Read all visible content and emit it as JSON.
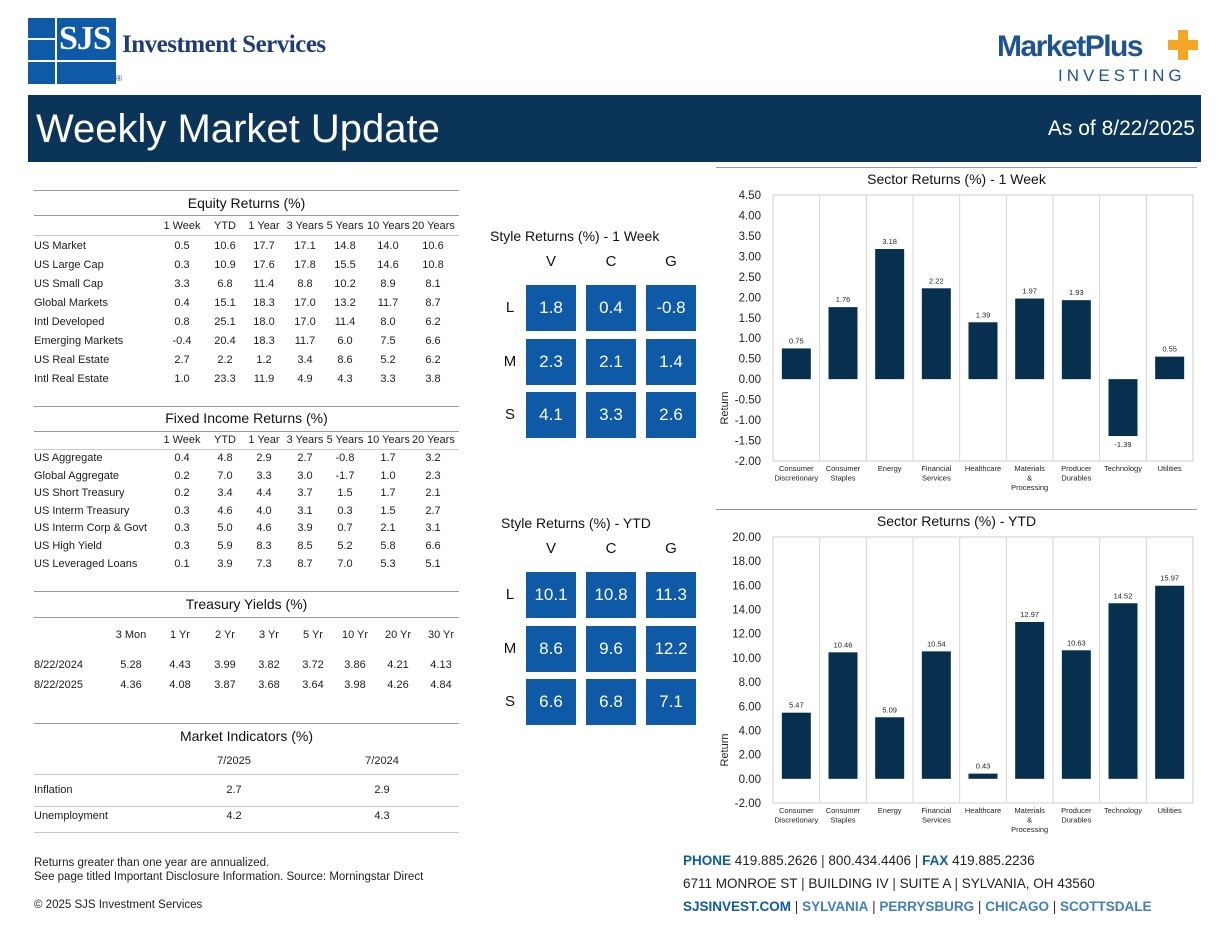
{
  "header": {
    "logo_mark_text": "SJS",
    "company_name": "Investment Services",
    "reg_mark": "®",
    "partner_logo_main": "MarketPlus",
    "partner_logo_sub": "INVESTING",
    "title": "Weekly Market Update",
    "as_of": "As of 8/22/2025"
  },
  "colors": {
    "navy": "#0b3558",
    "bar_navy": "#07304f",
    "style_blue": "#0e5aa7",
    "accent_orange": "#f5a623"
  },
  "equity": {
    "title": "Equity Returns (%)",
    "columns": [
      "1 Week",
      "YTD",
      "1 Year",
      "3 Years",
      "5 Years",
      "10 Years",
      "20 Years"
    ],
    "rows": [
      {
        "label": "US Market",
        "values": [
          "0.5",
          "10.6",
          "17.7",
          "17.1",
          "14.8",
          "14.0",
          "10.6"
        ]
      },
      {
        "label": "US Large Cap",
        "values": [
          "0.3",
          "10.9",
          "17.6",
          "17.8",
          "15.5",
          "14.6",
          "10.8"
        ]
      },
      {
        "label": "US Small Cap",
        "values": [
          "3.3",
          "6.8",
          "11.4",
          "8.8",
          "10.2",
          "8.9",
          "8.1"
        ]
      },
      {
        "label": "Global Markets",
        "values": [
          "0.4",
          "15.1",
          "18.3",
          "17.0",
          "13.2",
          "11.7",
          "8.7"
        ]
      },
      {
        "label": "Intl Developed",
        "values": [
          "0.8",
          "25.1",
          "18.0",
          "17.0",
          "11.4",
          "8.0",
          "6.2"
        ]
      },
      {
        "label": "Emerging Markets",
        "values": [
          "-0.4",
          "20.4",
          "18.3",
          "11.7",
          "6.0",
          "7.5",
          "6.6"
        ]
      },
      {
        "label": "US Real Estate",
        "values": [
          "2.7",
          "2.2",
          "1.2",
          "3.4",
          "8.6",
          "5.2",
          "6.2"
        ]
      },
      {
        "label": "Intl Real Estate",
        "values": [
          "1.0",
          "23.3",
          "11.9",
          "4.9",
          "4.3",
          "3.3",
          "3.8"
        ]
      }
    ]
  },
  "fixed_income": {
    "title": "Fixed Income Returns (%)",
    "columns": [
      "1 Week",
      "YTD",
      "1 Year",
      "3 Years",
      "5 Years",
      "10 Years",
      "20 Years"
    ],
    "rows": [
      {
        "label": "US Aggregate",
        "values": [
          "0.4",
          "4.8",
          "2.9",
          "2.7",
          "-0.8",
          "1.7",
          "3.2"
        ]
      },
      {
        "label": "Global Aggregate",
        "values": [
          "0.2",
          "7.0",
          "3.3",
          "3.0",
          "-1.7",
          "1.0",
          "2.3"
        ]
      },
      {
        "label": "US Short Treasury",
        "values": [
          "0.2",
          "3.4",
          "4.4",
          "3.7",
          "1.5",
          "1.7",
          "2.1"
        ]
      },
      {
        "label": "US Interm Treasury",
        "values": [
          "0.3",
          "4.6",
          "4.0",
          "3.1",
          "0.3",
          "1.5",
          "2.7"
        ]
      },
      {
        "label": "US Interm Corp & Govt",
        "values": [
          "0.3",
          "5.0",
          "4.6",
          "3.9",
          "0.7",
          "2.1",
          "3.1"
        ]
      },
      {
        "label": "US High Yield",
        "values": [
          "0.3",
          "5.9",
          "8.3",
          "8.5",
          "5.2",
          "5.8",
          "6.6"
        ]
      },
      {
        "label": "US Leveraged Loans",
        "values": [
          "0.1",
          "3.9",
          "7.3",
          "8.7",
          "7.0",
          "5.3",
          "5.1"
        ]
      }
    ]
  },
  "treasury": {
    "title": "Treasury Yields (%)",
    "columns": [
      "3 Mon",
      "1 Yr",
      "2 Yr",
      "3 Yr",
      "5 Yr",
      "10 Yr",
      "20 Yr",
      "30 Yr"
    ],
    "rows": [
      {
        "label": "8/22/2024",
        "values": [
          "5.28",
          "4.43",
          "3.99",
          "3.82",
          "3.72",
          "3.86",
          "4.21",
          "4.13"
        ]
      },
      {
        "label": "8/22/2025",
        "values": [
          "4.36",
          "4.08",
          "3.87",
          "3.68",
          "3.64",
          "3.98",
          "4.26",
          "4.84"
        ]
      }
    ]
  },
  "indicators": {
    "title": "Market Indicators (%)",
    "columns": [
      "7/2025",
      "7/2024"
    ],
    "rows": [
      {
        "label": "Inflation",
        "values": [
          "2.7",
          "2.9"
        ]
      },
      {
        "label": "Unemployment",
        "values": [
          "4.2",
          "4.3"
        ]
      }
    ]
  },
  "style_week": {
    "title": "Style Returns (%)  - 1 Week",
    "col_labels": [
      "V",
      "C",
      "G"
    ],
    "row_labels": [
      "L",
      "M",
      "S"
    ],
    "values": [
      [
        "1.8",
        "0.4",
        "-0.8"
      ],
      [
        "2.3",
        "2.1",
        "1.4"
      ],
      [
        "4.1",
        "3.3",
        "2.6"
      ]
    ]
  },
  "style_ytd": {
    "title": "Style Returns (%)  - YTD",
    "col_labels": [
      "V",
      "C",
      "G"
    ],
    "row_labels": [
      "L",
      "M",
      "S"
    ],
    "values": [
      [
        "10.1",
        "10.8",
        "11.3"
      ],
      [
        "8.6",
        "9.6",
        "12.2"
      ],
      [
        "6.6",
        "6.8",
        "7.1"
      ]
    ]
  },
  "chart_data": [
    {
      "type": "bar",
      "title": "Sector Returns (%)  - 1 Week",
      "ylabel": "Return",
      "xlabel": "",
      "ylim": [
        -2.0,
        4.5
      ],
      "yticks": [
        "4.50",
        "4.00",
        "3.50",
        "3.00",
        "2.50",
        "2.00",
        "1.50",
        "1.00",
        "0.50",
        "0.00",
        "-0.50",
        "-1.00",
        "-1.50",
        "-2.00"
      ],
      "categories": [
        [
          "Consumer",
          "Discretionary"
        ],
        [
          "Consumer",
          "Staples"
        ],
        [
          "Energy"
        ],
        [
          "Financial",
          "Services"
        ],
        [
          "Healthcare"
        ],
        [
          "Materials",
          "&",
          "Processing"
        ],
        [
          "Producer",
          "Durables"
        ],
        [
          "Technology"
        ],
        [
          "Utilities"
        ]
      ],
      "values": [
        0.75,
        1.76,
        3.18,
        2.22,
        1.39,
        1.97,
        1.93,
        -1.39,
        0.55
      ],
      "labels": [
        "0.75",
        "1.76",
        "3.18",
        "2.22",
        "1.39",
        "1.97",
        "1.93",
        "-1.39",
        "0.55"
      ]
    },
    {
      "type": "bar",
      "title": "Sector Returns (%)  - YTD",
      "ylabel": "Return",
      "xlabel": "",
      "ylim": [
        -2.0,
        20.0
      ],
      "yticks": [
        "20.00",
        "18.00",
        "16.00",
        "14.00",
        "12.00",
        "10.00",
        "8.00",
        "6.00",
        "4.00",
        "2.00",
        "0.00",
        "-2.00"
      ],
      "categories": [
        [
          "Consumer",
          "Discretionary"
        ],
        [
          "Consumer",
          "Staples"
        ],
        [
          "Energy"
        ],
        [
          "Financial",
          "Services"
        ],
        [
          "Healthcare"
        ],
        [
          "Materials",
          "&",
          "Processing"
        ],
        [
          "Producer",
          "Durables"
        ],
        [
          "Technology"
        ],
        [
          "Utilities"
        ]
      ],
      "values": [
        5.47,
        10.46,
        5.09,
        10.54,
        0.43,
        12.97,
        10.63,
        14.52,
        15.97
      ],
      "labels": [
        "5.47",
        "10.46",
        "5.09",
        "10.54",
        "0.43",
        "12.97",
        "10.63",
        "14.52",
        "15.97"
      ]
    }
  ],
  "footer": {
    "note1": "Returns greater than one year are annualized.",
    "note2": "See page titled Important Disclosure Information. Source: Morningstar Direct",
    "copyright": "© 2025 SJS Investment Services",
    "phone_label": "PHONE",
    "phone": "419.885.2626",
    "phone2": "800.434.4406",
    "fax_label": "FAX",
    "fax": "419.885.2236",
    "address": [
      "6711 MONROE ST",
      "BUILDING IV",
      "SUITE A",
      "SYLVANIA, OH 43560"
    ],
    "links": [
      "SJSINVEST.COM",
      "SYLVANIA",
      "PERRYSBURG",
      "CHICAGO",
      "SCOTTSDALE"
    ],
    "separator": "|"
  }
}
